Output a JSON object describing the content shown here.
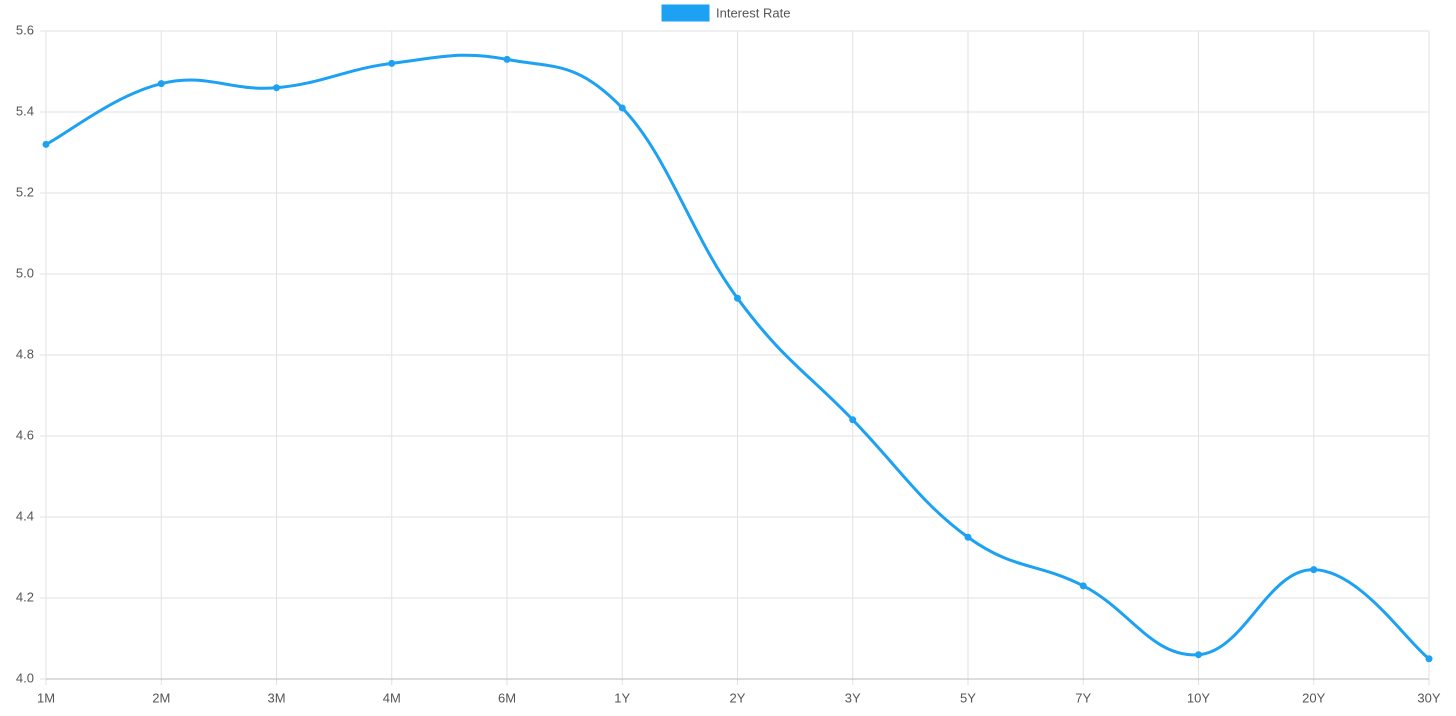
{
  "chart_data": {
    "type": "line",
    "categories": [
      "1M",
      "2M",
      "3M",
      "4M",
      "6M",
      "1Y",
      "2Y",
      "3Y",
      "5Y",
      "7Y",
      "10Y",
      "20Y",
      "30Y"
    ],
    "series": [
      {
        "name": "Interest Rate",
        "color": "#1da1f2",
        "values": [
          5.32,
          5.47,
          5.46,
          5.52,
          5.53,
          5.41,
          4.94,
          4.64,
          4.35,
          4.23,
          4.06,
          4.27,
          4.05
        ]
      }
    ],
    "ylim": [
      4.0,
      5.6
    ],
    "yticks": [
      {
        "value": 4.0,
        "label": "4.0"
      },
      4.2,
      4.4,
      4.6,
      4.8,
      {
        "value": 5.0,
        "label": "5.0"
      },
      5.2,
      5.4,
      5.6
    ],
    "grid": true,
    "legend": "top"
  }
}
